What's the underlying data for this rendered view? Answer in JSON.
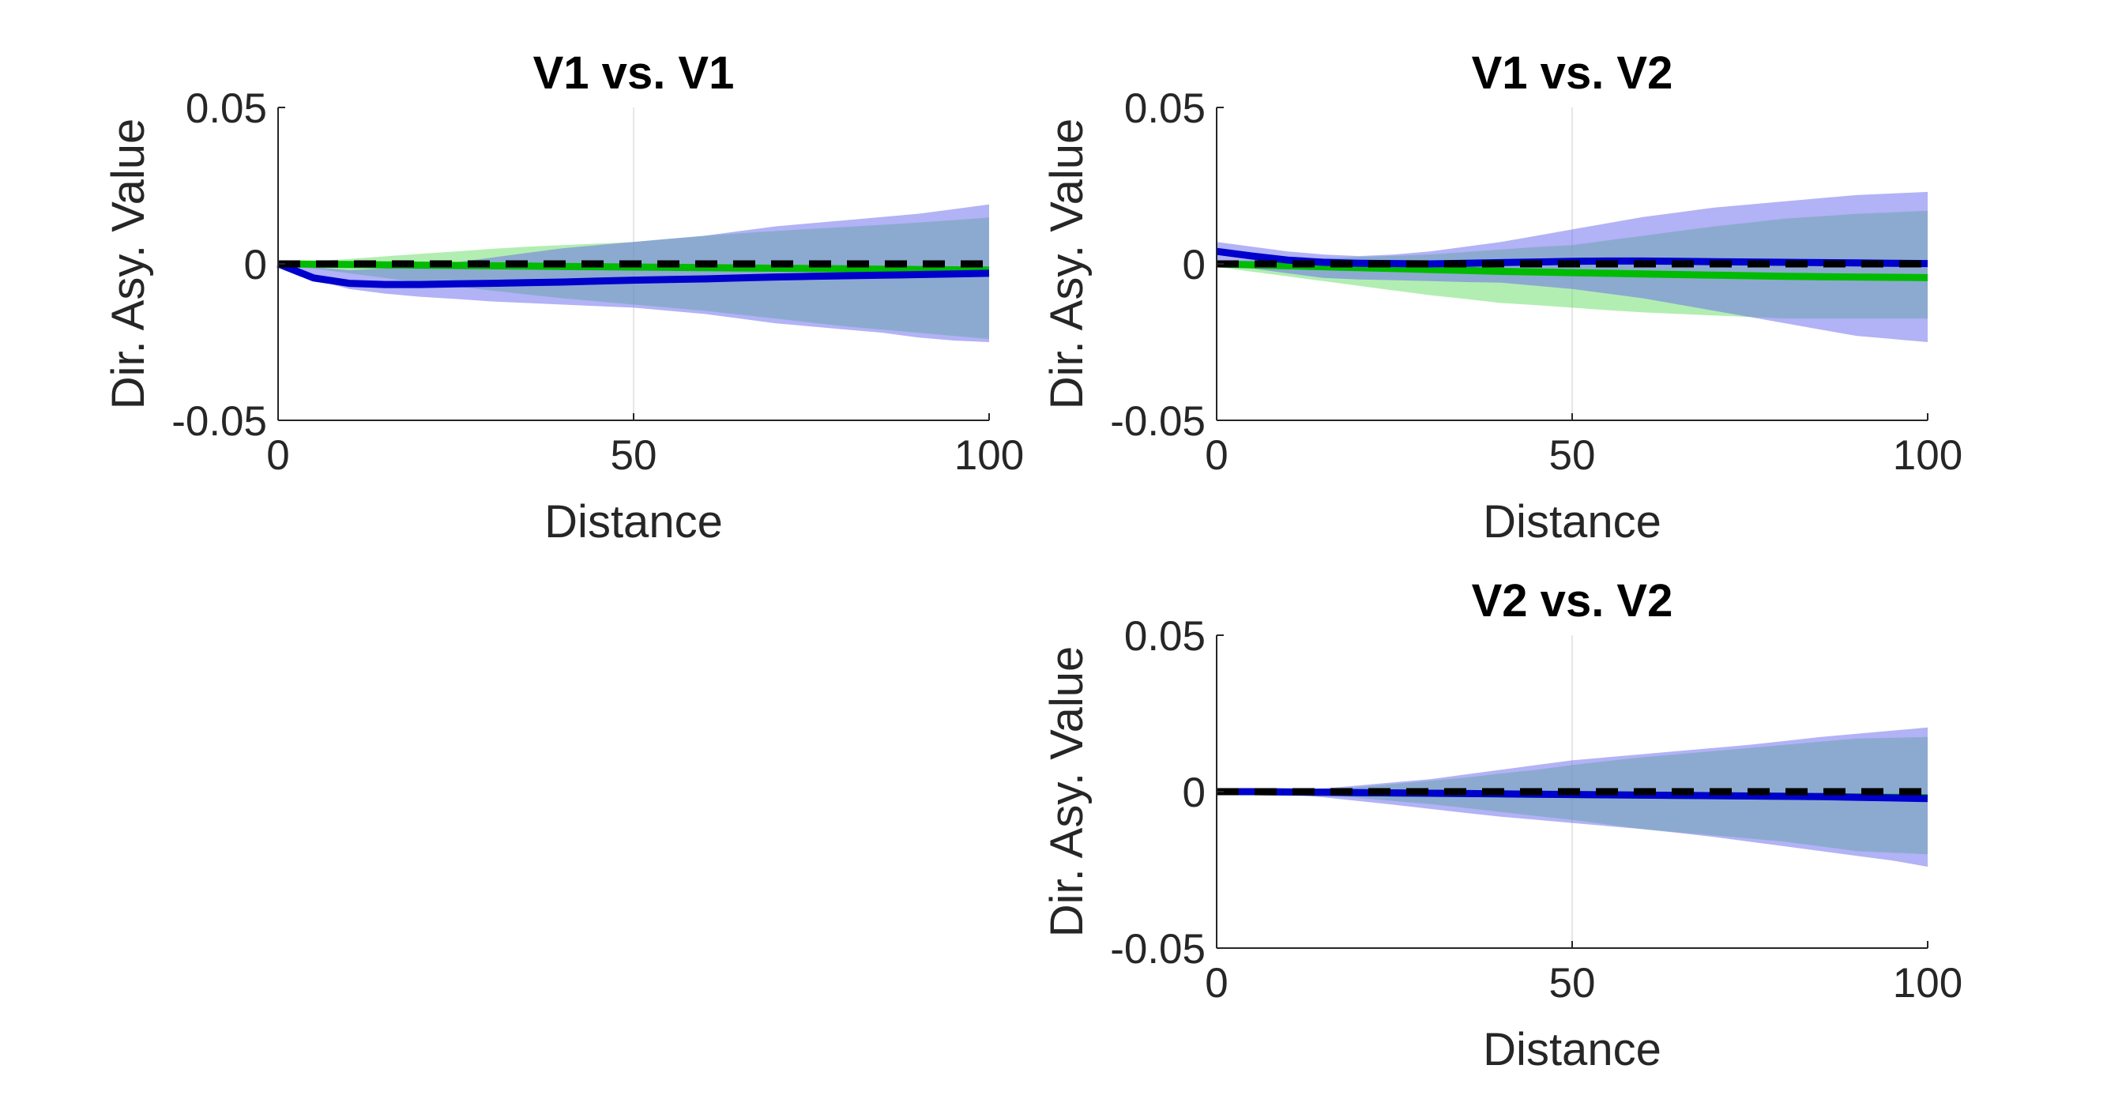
{
  "figure": {
    "background": "#ffffff"
  },
  "colors": {
    "green_band": "#66dd66",
    "blue_band": "#6666ee",
    "green_line": "#00bb00",
    "blue_line": "#0000cc",
    "null_line": "#000000",
    "axis": "#262626",
    "grid": "#e6e6e6"
  },
  "chart_data": [
    {
      "type": "line",
      "title": "V1 vs. V1",
      "xlabel": "Distance",
      "ylabel": "Dir. Asy. Value",
      "xlim": [
        0,
        100
      ],
      "ylim": [
        -0.05,
        0.05
      ],
      "xticks": [
        0,
        50,
        100
      ],
      "yticks": [
        -0.05,
        0,
        0.05
      ],
      "xtick_labels": [
        "0",
        "50",
        "100"
      ],
      "ytick_labels": [
        "-0.05",
        "0",
        "0.05"
      ],
      "x": [
        0,
        5,
        10,
        15,
        20,
        25,
        30,
        35,
        40,
        45,
        50,
        55,
        60,
        65,
        70,
        75,
        80,
        85,
        90,
        95,
        100
      ],
      "series": [
        {
          "color": "green",
          "band_upper": [
            0,
            0.0008,
            0.0016,
            0.0024,
            0.0032,
            0.004,
            0.0048,
            0.0055,
            0.006,
            0.0065,
            0.007,
            0.008,
            0.009,
            0.0098,
            0.0105,
            0.0112,
            0.0118,
            0.0125,
            0.0132,
            0.014,
            0.0148
          ],
          "band_lower": [
            0,
            -0.0015,
            -0.003,
            -0.0045,
            -0.006,
            -0.0072,
            -0.0085,
            -0.0098,
            -0.011,
            -0.012,
            -0.013,
            -0.014,
            -0.015,
            -0.0162,
            -0.0175,
            -0.0188,
            -0.02,
            -0.021,
            -0.022,
            -0.023,
            -0.024
          ],
          "mean": [
            0,
            -0.0001,
            -0.0002,
            -0.0003,
            -0.0004,
            -0.0005,
            -0.0006,
            -0.0007,
            -0.0008,
            -0.0009,
            -0.001,
            -0.0011,
            -0.0012,
            -0.0013,
            -0.0014,
            -0.0015,
            -0.0016,
            -0.0017,
            -0.0018,
            -0.0019,
            -0.002
          ]
        },
        {
          "color": "blue",
          "band_upper": [
            0,
            -0.001,
            -0.002,
            -0.0015,
            -0.001,
            0.0005,
            0.002,
            0.0035,
            0.005,
            0.006,
            0.007,
            0.008,
            0.009,
            0.0105,
            0.012,
            0.013,
            0.014,
            0.015,
            0.016,
            0.0175,
            0.019
          ],
          "band_lower": [
            0,
            -0.005,
            -0.008,
            -0.0095,
            -0.0105,
            -0.0112,
            -0.012,
            -0.0125,
            -0.013,
            -0.0135,
            -0.014,
            -0.015,
            -0.016,
            -0.0175,
            -0.019,
            -0.02,
            -0.021,
            -0.022,
            -0.0235,
            -0.0245,
            -0.025
          ],
          "mean": [
            0,
            -0.0045,
            -0.0062,
            -0.0066,
            -0.0066,
            -0.0064,
            -0.0062,
            -0.006,
            -0.0058,
            -0.0055,
            -0.0052,
            -0.005,
            -0.0048,
            -0.0045,
            -0.0042,
            -0.004,
            -0.0038,
            -0.0036,
            -0.0034,
            -0.0032,
            -0.003
          ]
        },
        {
          "color": "null",
          "style": "dashed",
          "mean": [
            0,
            0,
            0,
            0,
            0,
            0,
            0,
            0,
            0,
            0,
            0,
            0,
            0,
            0,
            0,
            0,
            0,
            0,
            0,
            0,
            0
          ]
        }
      ]
    },
    {
      "type": "line",
      "title": "V1 vs. V2",
      "xlabel": "Distance",
      "ylabel": "Dir. Asy. Value",
      "xlim": [
        0,
        100
      ],
      "ylim": [
        -0.05,
        0.05
      ],
      "xticks": [
        0,
        50,
        100
      ],
      "yticks": [
        -0.05,
        0,
        0.05
      ],
      "xtick_labels": [
        "0",
        "50",
        "100"
      ],
      "ytick_labels": [
        "-0.05",
        "0",
        "0.05"
      ],
      "x": [
        0,
        5,
        10,
        15,
        20,
        25,
        30,
        35,
        40,
        45,
        50,
        55,
        60,
        65,
        70,
        75,
        80,
        85,
        90,
        95,
        100
      ],
      "series": [
        {
          "color": "green",
          "band_upper": [
            0.001,
            0.0012,
            0.0014,
            0.0018,
            0.0022,
            0.0026,
            0.003,
            0.0038,
            0.0046,
            0.0054,
            0.006,
            0.0075,
            0.009,
            0.0105,
            0.012,
            0.0132,
            0.0145,
            0.0152,
            0.016,
            0.0165,
            0.017
          ],
          "band_lower": [
            -0.001,
            -0.0025,
            -0.004,
            -0.0055,
            -0.007,
            -0.0085,
            -0.01,
            -0.0112,
            -0.0125,
            -0.0132,
            -0.014,
            -0.0148,
            -0.0155,
            -0.016,
            -0.0165,
            -0.017,
            -0.0175,
            -0.0175,
            -0.0175,
            -0.0175,
            -0.0175
          ],
          "mean": [
            0,
            -0.0003,
            -0.0006,
            -0.0009,
            -0.0012,
            -0.0015,
            -0.0018,
            -0.0021,
            -0.0024,
            -0.0026,
            -0.0028,
            -0.003,
            -0.0032,
            -0.0034,
            -0.0036,
            -0.0038,
            -0.004,
            -0.0041,
            -0.0042,
            -0.0043,
            -0.0044
          ]
        },
        {
          "color": "blue",
          "band_upper": [
            0.007,
            0.0055,
            0.004,
            0.003,
            0.0025,
            0.003,
            0.004,
            0.0055,
            0.007,
            0.009,
            0.011,
            0.013,
            0.015,
            0.0165,
            0.018,
            0.019,
            0.02,
            0.021,
            0.022,
            0.0225,
            0.023
          ],
          "band_lower": [
            0.001,
            -0.0015,
            -0.003,
            -0.0045,
            -0.005,
            -0.0052,
            -0.0055,
            -0.0058,
            -0.006,
            -0.007,
            -0.008,
            -0.0095,
            -0.011,
            -0.013,
            -0.015,
            -0.017,
            -0.019,
            -0.021,
            -0.023,
            -0.024,
            -0.025
          ],
          "mean": [
            0.004,
            0.0025,
            0.0012,
            0.0005,
            0.0002,
            0.0001,
            0,
            0.0002,
            0.0004,
            0.0006,
            0.0008,
            0.0009,
            0.0009,
            0.0008,
            0.0007,
            0.0006,
            0.0005,
            0.0004,
            0.0003,
            0.0002,
            0.0001
          ]
        },
        {
          "color": "null",
          "style": "dashed",
          "mean": [
            0,
            0,
            0,
            0,
            0,
            0,
            0,
            0,
            0,
            0,
            0,
            0,
            0,
            0,
            0,
            0,
            0,
            0,
            0,
            0,
            0
          ]
        }
      ]
    },
    {
      "type": "line",
      "title": "V2 vs. V2",
      "xlabel": "Distance",
      "ylabel": "Dir. Asy. Value",
      "xlim": [
        0,
        100
      ],
      "ylim": [
        -0.05,
        0.05
      ],
      "xticks": [
        0,
        50,
        100
      ],
      "yticks": [
        -0.05,
        0,
        0.05
      ],
      "xtick_labels": [
        "0",
        "50",
        "100"
      ],
      "ytick_labels": [
        "-0.05",
        "0",
        "0.05"
      ],
      "x": [
        0,
        5,
        10,
        15,
        20,
        25,
        30,
        35,
        40,
        45,
        50,
        55,
        60,
        65,
        70,
        75,
        80,
        85,
        90,
        95,
        100
      ],
      "series": [
        {
          "color": "green",
          "band_upper": [
            0,
            0,
            0.0003,
            0.0008,
            0.0015,
            0.0025,
            0.0035,
            0.0045,
            0.0058,
            0.007,
            0.0085,
            0.0098,
            0.011,
            0.012,
            0.013,
            0.014,
            0.015,
            0.016,
            0.017,
            0.0172,
            0.0175
          ],
          "band_lower": [
            0,
            0,
            -0.0005,
            -0.0012,
            -0.002,
            -0.003,
            -0.004,
            -0.0052,
            -0.0065,
            -0.0078,
            -0.009,
            -0.0105,
            -0.012,
            -0.013,
            -0.014,
            -0.015,
            -0.016,
            -0.0175,
            -0.019,
            -0.0195,
            -0.02
          ],
          "mean": [
            0,
            0,
            -0.0001,
            -0.0002,
            -0.0003,
            -0.0004,
            -0.0005,
            -0.0006,
            -0.0007,
            -0.0008,
            -0.0009,
            -0.001,
            -0.0011,
            -0.0012,
            -0.0013,
            -0.0014,
            -0.0015,
            -0.0016,
            -0.0017,
            -0.0018,
            -0.0019
          ]
        },
        {
          "color": "blue",
          "band_upper": [
            0,
            0,
            0.0003,
            0.001,
            0.002,
            0.003,
            0.004,
            0.0055,
            0.007,
            0.0085,
            0.01,
            0.011,
            0.012,
            0.013,
            0.014,
            0.015,
            0.0162,
            0.0175,
            0.0185,
            0.0195,
            0.0205
          ],
          "band_lower": [
            0,
            0,
            -0.0008,
            -0.0018,
            -0.003,
            -0.0042,
            -0.0055,
            -0.0068,
            -0.008,
            -0.009,
            -0.01,
            -0.011,
            -0.012,
            -0.0132,
            -0.0145,
            -0.016,
            -0.0175,
            -0.019,
            -0.0205,
            -0.022,
            -0.024
          ],
          "mean": [
            0,
            0,
            -0.0001,
            -0.0002,
            -0.0003,
            -0.0004,
            -0.0005,
            -0.0006,
            -0.0007,
            -0.0008,
            -0.0009,
            -0.001,
            -0.0011,
            -0.0012,
            -0.0013,
            -0.0014,
            -0.0015,
            -0.0016,
            -0.0018,
            -0.002,
            -0.0022
          ]
        },
        {
          "color": "null",
          "style": "dashed",
          "mean": [
            0,
            0,
            0,
            0,
            0,
            0,
            0,
            0,
            0,
            0,
            0,
            0,
            0,
            0,
            0,
            0,
            0,
            0,
            0,
            0,
            0
          ]
        }
      ]
    }
  ]
}
